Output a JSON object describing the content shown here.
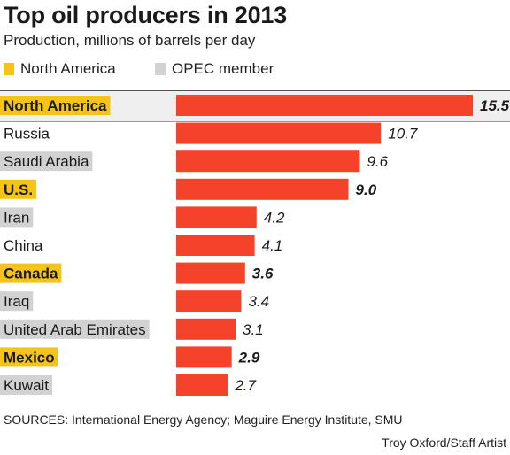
{
  "header": {
    "title": "Top oil producers in 2013",
    "subtitle": "Production, millions of barrels per day"
  },
  "legend": {
    "items": [
      {
        "label": "North America",
        "color": "#f6c416"
      },
      {
        "label": "OPEC member",
        "color": "#d2d2d2"
      }
    ]
  },
  "colors": {
    "bar": "#f4432a",
    "north_america": "#f6c416",
    "opec": "#d2d2d2"
  },
  "chart_data": {
    "type": "bar",
    "orientation": "horizontal",
    "title": "Top oil producers in 2013",
    "subtitle": "Production, millions of barrels per day",
    "categories": [
      "North America",
      "Russia",
      "Saudi Arabia",
      "U.S.",
      "Iran",
      "China",
      "Canada",
      "Iraq",
      "United Arab Emirates",
      "Mexico",
      "Kuwait"
    ],
    "values": [
      15.5,
      10.7,
      9.6,
      9.0,
      4.2,
      4.1,
      3.6,
      3.4,
      3.1,
      2.9,
      2.7
    ],
    "value_labels": [
      "15.5",
      "10.7",
      "9.6",
      "9.0",
      "4.2",
      "4.1",
      "3.6",
      "3.4",
      "3.1",
      "2.9",
      "2.7"
    ],
    "groups": [
      "north_america",
      "none",
      "opec",
      "north_america",
      "opec",
      "none",
      "north_america",
      "opec",
      "opec",
      "north_america",
      "opec"
    ],
    "xlim": [
      0,
      15.5
    ],
    "grid": false,
    "legend_position": "top-left"
  },
  "footer": {
    "sources": "SOURCES: International Energy Agency; Maguire Energy Institute, SMU",
    "credit": "Troy Oxford/Staff Artist"
  }
}
